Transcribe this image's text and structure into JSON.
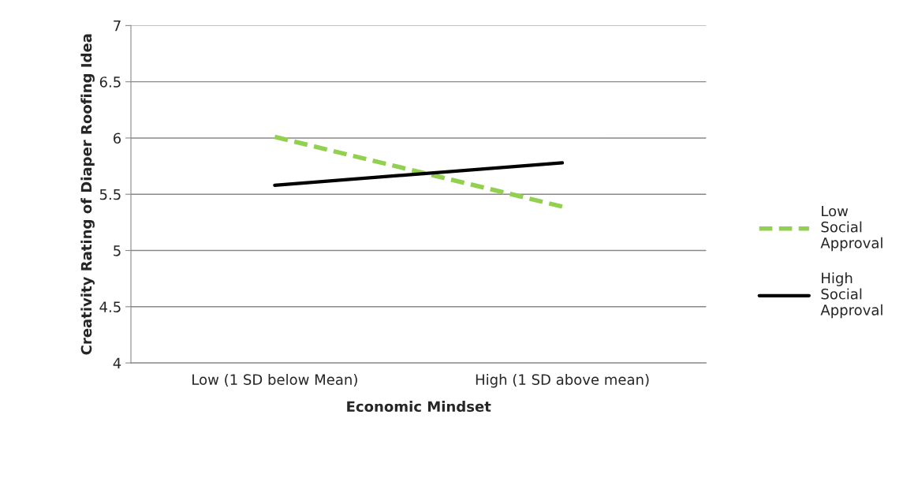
{
  "chart_data": {
    "type": "line",
    "xlabel": "Economic Mindset",
    "ylabel": "Creativity Rating of Diaper Roofing Idea",
    "categories": [
      "Low (1 SD below Mean)",
      "High (1 SD above mean)"
    ],
    "series": [
      {
        "name": "Low Social Approval",
        "color": "#92d050",
        "values": [
          6.01,
          5.39
        ],
        "line_style": "dashed"
      },
      {
        "name": "High Social Approval",
        "color": "#000000",
        "values": [
          5.58,
          5.78
        ],
        "line_style": "solid"
      }
    ],
    "ylim": [
      4,
      7
    ],
    "yticks": [
      4,
      4.5,
      5,
      5.5,
      6,
      6.5,
      7
    ],
    "grid": "y",
    "legend": "right",
    "marker": "none"
  }
}
